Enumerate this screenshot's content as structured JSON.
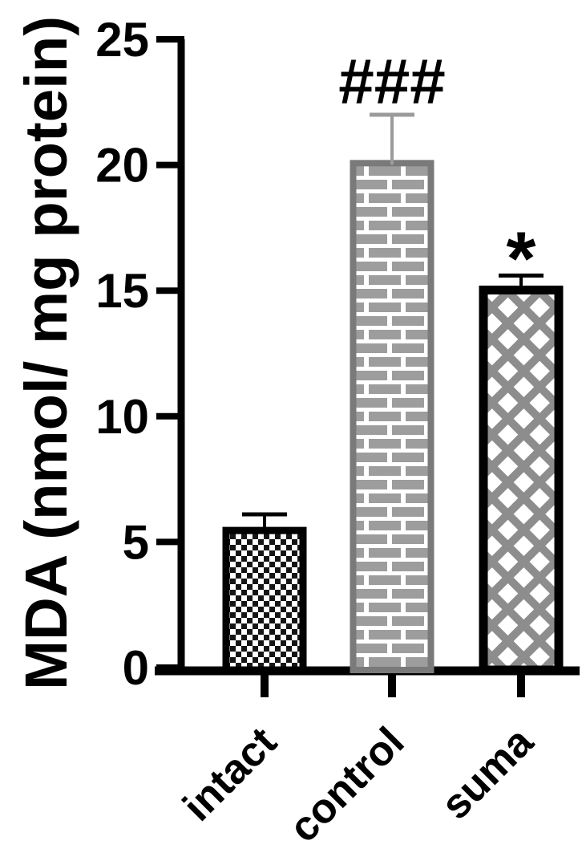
{
  "figure": {
    "background": "#ffffff",
    "text_color": "#000000"
  },
  "chart_data": {
    "type": "bar",
    "title": "",
    "xlabel": "",
    "ylabel": "MDA (nmol/ mg protein)",
    "ylim": [
      0,
      25
    ],
    "yticks": [
      25,
      20,
      15,
      10,
      5,
      0
    ],
    "grid": false,
    "legend": "none",
    "categories": [
      "intact",
      "control",
      "suma"
    ],
    "values": [
      5.6,
      20.2,
      15.2
    ],
    "errors_plus": [
      0.5,
      1.8,
      0.4
    ],
    "annotations": [
      {
        "category": "control",
        "text": "###"
      },
      {
        "category": "suma",
        "text": "*"
      }
    ],
    "bar_styles": [
      {
        "pattern": "checkerboard",
        "pattern_color": "#151515",
        "border_color": "#000000",
        "error_color": "#000000"
      },
      {
        "pattern": "brick",
        "pattern_color": "#9d9d9d",
        "border_color": "#7a7a7a",
        "error_color": "#9b9b9b"
      },
      {
        "pattern": "lattice",
        "pattern_color": "#8d8d8d",
        "border_color": "#000000",
        "error_color": "#000000"
      }
    ],
    "axis_color": "#000000"
  }
}
